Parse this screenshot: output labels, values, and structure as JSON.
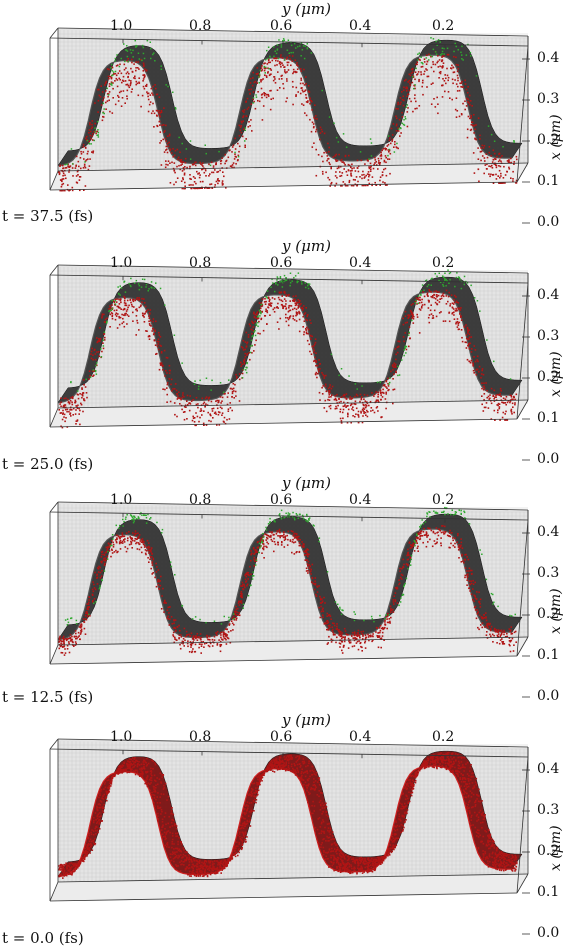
{
  "chart_data": [
    {
      "type": "surface3d",
      "time_label": "t = 37.5 (fs)",
      "ylabel": "y (μm)",
      "xlabel": "x (μm)",
      "y_ticks": [
        "1.0",
        "0.8",
        "0.6",
        "0.4",
        "0.2"
      ],
      "x_ticks": [
        "0.4",
        "0.3",
        "0.2",
        "0.1",
        "0.0"
      ],
      "ylim": [
        0.0,
        1.15
      ],
      "xlim": [
        0.0,
        0.4
      ],
      "series": [
        {
          "name": "surface",
          "color": "#2a2a2a"
        },
        {
          "name": "red particles",
          "color": "#b01515",
          "spread": 0.85
        },
        {
          "name": "green particles",
          "color": "#2ea82e",
          "spread": 0.35
        }
      ]
    },
    {
      "type": "surface3d",
      "time_label": "t = 25.0 (fs)",
      "ylabel": "y (μm)",
      "xlabel": "x (μm)",
      "y_ticks": [
        "1.0",
        "0.8",
        "0.6",
        "0.4",
        "0.2"
      ],
      "x_ticks": [
        "0.4",
        "0.3",
        "0.2",
        "0.1",
        "0.0"
      ],
      "ylim": [
        0.0,
        1.15
      ],
      "xlim": [
        0.0,
        0.4
      ],
      "series": [
        {
          "name": "surface",
          "color": "#2a2a2a"
        },
        {
          "name": "red particles",
          "color": "#b01515",
          "spread": 0.55
        },
        {
          "name": "green particles",
          "color": "#2ea82e",
          "spread": 0.2
        }
      ]
    },
    {
      "type": "surface3d",
      "time_label": "t = 12.5 (fs)",
      "ylabel": "y (μm)",
      "xlabel": "x (μm)",
      "y_ticks": [
        "1.0",
        "0.8",
        "0.6",
        "0.4",
        "0.2"
      ],
      "x_ticks": [
        "0.4",
        "0.3",
        "0.2",
        "0.1",
        "0.0"
      ],
      "ylim": [
        0.0,
        1.15
      ],
      "xlim": [
        0.0,
        0.4
      ],
      "series": [
        {
          "name": "surface",
          "color": "#2a2a2a"
        },
        {
          "name": "red particles",
          "color": "#b01515",
          "spread": 0.3
        },
        {
          "name": "green particles",
          "color": "#2ea82e",
          "spread": 0.1
        }
      ]
    },
    {
      "type": "surface3d",
      "time_label": "t = 0.0 (fs)",
      "ylabel": "y (μm)",
      "xlabel": "x (μm)",
      "y_ticks": [
        "1.0",
        "0.8",
        "0.6",
        "0.4",
        "0.2"
      ],
      "x_ticks": [
        "0.4",
        "0.3",
        "0.2",
        "0.1",
        "0.0"
      ],
      "ylim": [
        0.0,
        1.15
      ],
      "xlim": [
        0.0,
        0.4
      ],
      "series": [
        {
          "name": "surface",
          "color": "#7a1010"
        },
        {
          "name": "red particles",
          "color": "#b01515",
          "spread": 0.12
        },
        {
          "name": "green particles",
          "color": "#2ea82e",
          "spread": 0.0
        }
      ]
    }
  ]
}
